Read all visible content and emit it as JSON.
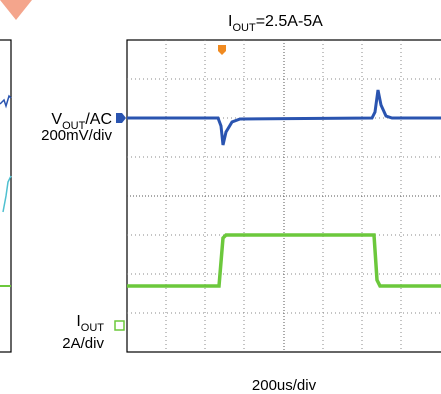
{
  "title": {
    "main": "I",
    "sub": "OUT",
    "rest": "=2.5A-5A"
  },
  "channel1": {
    "name_main": "V",
    "name_sub": "OUT",
    "name_rest": "/AC",
    "scale": "200mV/div"
  },
  "channel2": {
    "name_main": "I",
    "name_sub": "OUT",
    "scale": "2A/div"
  },
  "timebase": "200us/div"
}
